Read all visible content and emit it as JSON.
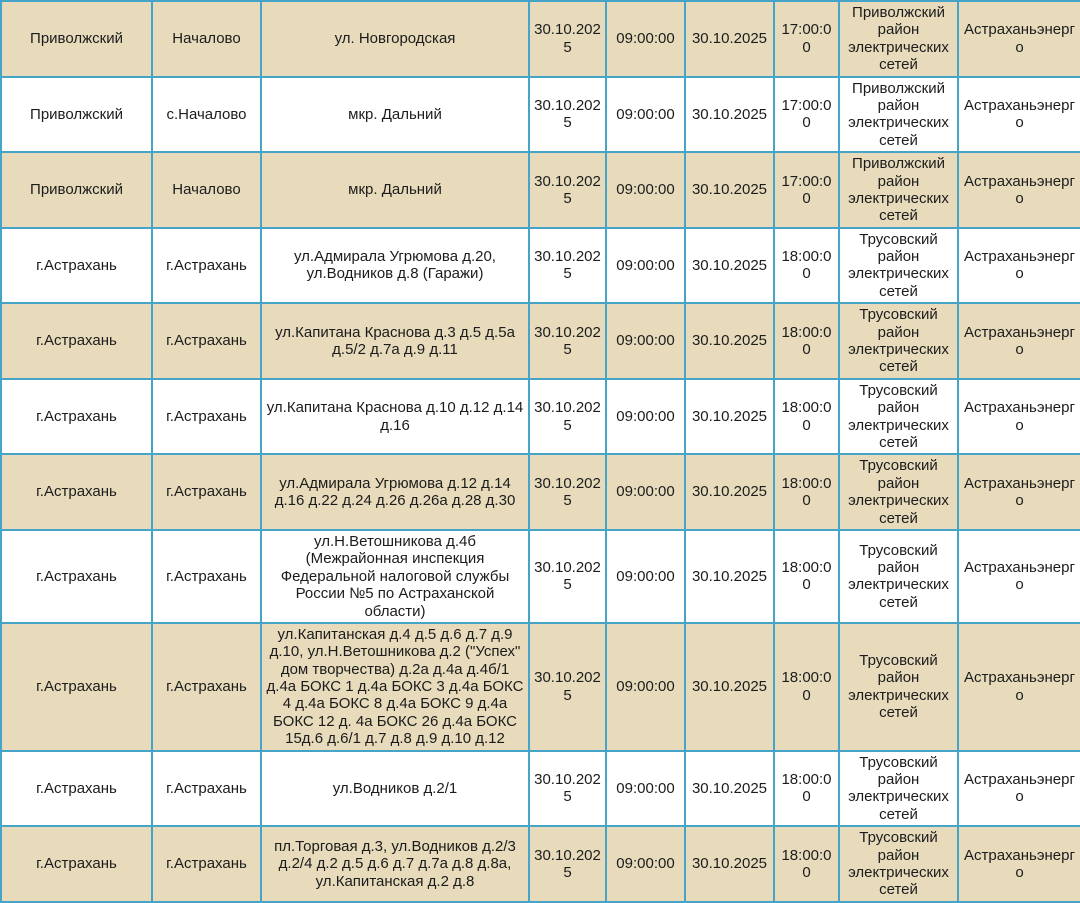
{
  "colors": {
    "border": "#46a4c8",
    "row_shaded": "#e7dbbc",
    "row_plain": "#ffffff",
    "text": "#1c1c1c"
  },
  "table": {
    "rows": [
      {
        "shaded": true,
        "district": "Приволжский",
        "settlement": "Началово",
        "address": "ул. Новгородская",
        "date_start": "30.10.2025",
        "time_start": "09:00:00",
        "date_end": "30.10.2025",
        "time_end": "17:00:00",
        "network": "Приволжский район электрических сетей",
        "company": "Астраханьэнерго"
      },
      {
        "shaded": false,
        "district": "Приволжский",
        "settlement": "с.Началово",
        "address": "мкр. Дальний",
        "date_start": "30.10.2025",
        "time_start": "09:00:00",
        "date_end": "30.10.2025",
        "time_end": "17:00:00",
        "network": "Приволжский район электрических сетей",
        "company": "Астраханьэнерго"
      },
      {
        "shaded": true,
        "district": "Приволжский",
        "settlement": "Началово",
        "address": "мкр. Дальний",
        "date_start": "30.10.2025",
        "time_start": "09:00:00",
        "date_end": "30.10.2025",
        "time_end": "17:00:00",
        "network": "Приволжский район электрических сетей",
        "company": "Астраханьэнерго"
      },
      {
        "shaded": false,
        "district": "г.Астрахань",
        "settlement": "г.Астрахань",
        "address": "ул.Адмирала Угрюмова д.20, ул.Водников д.8 (Гаражи)",
        "date_start": "30.10.2025",
        "time_start": "09:00:00",
        "date_end": "30.10.2025",
        "time_end": "18:00:00",
        "network": "Трусовский район электрических сетей",
        "company": "Астраханьэнерго"
      },
      {
        "shaded": true,
        "district": "г.Астрахань",
        "settlement": "г.Астрахань",
        "address": "ул.Капитана Краснова д.3 д.5 д.5а д.5/2 д.7а д.9 д.11",
        "date_start": "30.10.2025",
        "time_start": "09:00:00",
        "date_end": "30.10.2025",
        "time_end": "18:00:00",
        "network": "Трусовский район электрических сетей",
        "company": "Астраханьэнерго"
      },
      {
        "shaded": false,
        "district": "г.Астрахань",
        "settlement": "г.Астрахань",
        "address": "ул.Капитана Краснова д.10 д.12 д.14 д.16",
        "date_start": "30.10.2025",
        "time_start": "09:00:00",
        "date_end": "30.10.2025",
        "time_end": "18:00:00",
        "network": "Трусовский район электрических сетей",
        "company": "Астраханьэнерго"
      },
      {
        "shaded": true,
        "district": "г.Астрахань",
        "settlement": "г.Астрахань",
        "address": "ул.Адмирала Угрюмова д.12 д.14 д.16 д.22 д.24 д.26 д.26а д.28 д.30",
        "date_start": "30.10.2025",
        "time_start": "09:00:00",
        "date_end": "30.10.2025",
        "time_end": "18:00:00",
        "network": "Трусовский район электрических сетей",
        "company": "Астраханьэнерго"
      },
      {
        "shaded": false,
        "district": "г.Астрахань",
        "settlement": "г.Астрахань",
        "address": "ул.Н.Ветошникова д.4б (Межрайонная инспекция Федеральной налоговой службы России №5 по Астраханской области)",
        "date_start": "30.10.2025",
        "time_start": "09:00:00",
        "date_end": "30.10.2025",
        "time_end": "18:00:00",
        "network": "Трусовский район электрических сетей",
        "company": "Астраханьэнерго"
      },
      {
        "shaded": true,
        "district": "г.Астрахань",
        "settlement": "г.Астрахань",
        "address": "ул.Капитанская д.4 д.5 д.6 д.7 д.9 д.10, ул.Н.Ветошникова д.2 (\"Успех\" дом творчества) д.2а д.4а д.4б/1 д.4а БОКС 1 д.4а БОКС 3 д.4а БОКС 4 д.4а БОКС 8 д.4а БОКС 9 д.4а БОКС 12 д. 4а БОКС 26 д.4а БОКС 15д.6 д.6/1 д.7 д.8 д.9 д.10 д.12",
        "date_start": "30.10.2025",
        "time_start": "09:00:00",
        "date_end": "30.10.2025",
        "time_end": "18:00:00",
        "network": "Трусовский район электрических сетей",
        "company": "Астраханьэнерго"
      },
      {
        "shaded": false,
        "district": "г.Астрахань",
        "settlement": "г.Астрахань",
        "address": "ул.Водников д.2/1",
        "date_start": "30.10.2025",
        "time_start": "09:00:00",
        "date_end": "30.10.2025",
        "time_end": "18:00:00",
        "network": "Трусовский район электрических сетей",
        "company": "Астраханьэнерго"
      },
      {
        "shaded": true,
        "district": "г.Астрахань",
        "settlement": "г.Астрахань",
        "address": "пл.Торговая д.3, ул.Водников д.2/3 д.2/4 д.2 д.5 д.6 д.7 д.7а д.8 д.8а, ул.Капитанская д.2 д.8",
        "date_start": "30.10.2025",
        "time_start": "09:00:00",
        "date_end": "30.10.2025",
        "time_end": "18:00:00",
        "network": "Трусовский район электрических сетей",
        "company": "Астраханьэнерго"
      }
    ]
  }
}
